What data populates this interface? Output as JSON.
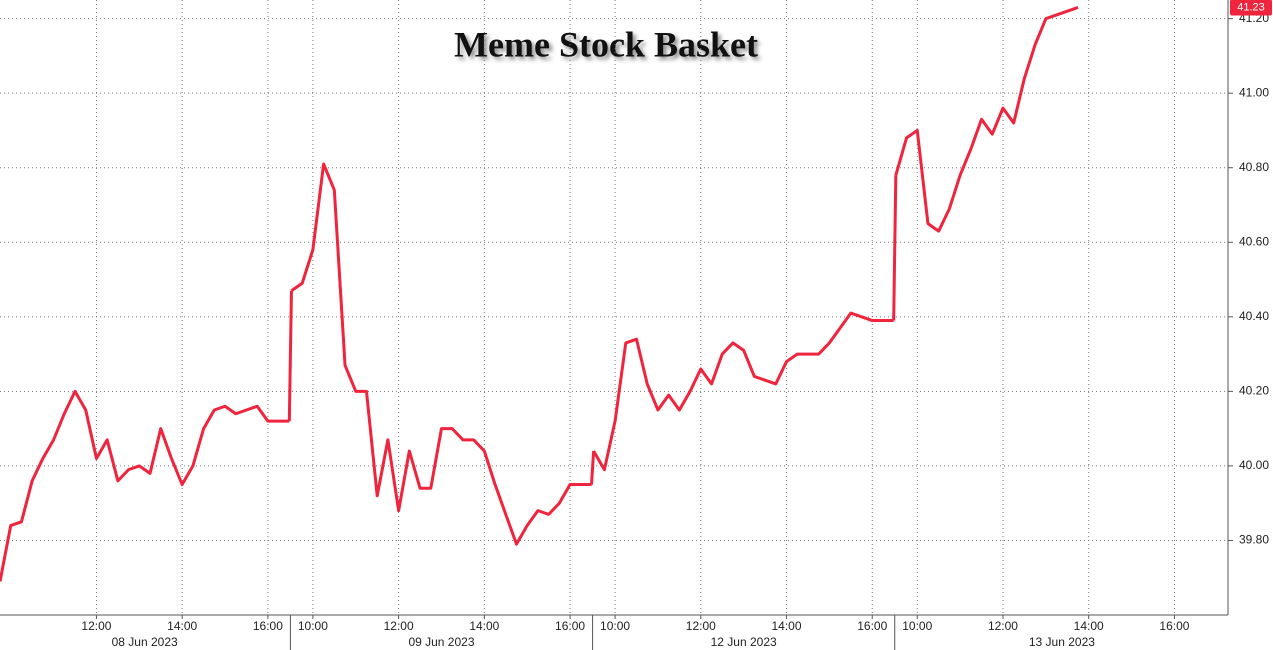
{
  "chart_data": {
    "type": "line",
    "title": "Meme Stock Basket",
    "color": "#f0243c",
    "grid": true,
    "ylim": [
      39.6,
      41.25
    ],
    "yticks": [
      {
        "value": 39.8,
        "label": "39.80"
      },
      {
        "value": 40.0,
        "label": "40.00"
      },
      {
        "value": 40.2,
        "label": "40.20"
      },
      {
        "value": 40.4,
        "label": "40.40"
      },
      {
        "value": 40.6,
        "label": "40.60"
      },
      {
        "value": 40.8,
        "label": "40.80"
      },
      {
        "value": 41.0,
        "label": "41.00"
      },
      {
        "value": 41.2,
        "label": "41.20"
      }
    ],
    "sessions": [
      {
        "label": "08 Jun 2023",
        "categories": [
          null,
          null,
          null,
          null,
          null,
          null,
          null,
          null,
          null,
          "12:00",
          null,
          null,
          null,
          null,
          null,
          null,
          null,
          "14:00",
          null,
          null,
          null,
          null,
          null,
          null,
          null,
          "16:00",
          null,
          null
        ],
        "values": [
          39.69,
          39.84,
          39.85,
          39.96,
          40.02,
          40.07,
          40.14,
          40.2,
          40.15,
          40.02,
          40.07,
          39.96,
          39.99,
          40.0,
          39.98,
          40.1,
          40.02,
          39.95,
          40.0,
          40.1,
          40.15,
          40.16,
          40.14,
          40.15,
          40.16,
          40.12,
          40.12,
          40.12
        ]
      },
      {
        "label": "09 Jun 2023",
        "categories": [
          null,
          null,
          "10:00",
          null,
          null,
          null,
          null,
          null,
          null,
          null,
          "12:00",
          null,
          null,
          null,
          null,
          null,
          null,
          null,
          "14:00",
          null,
          null,
          null,
          null,
          null,
          null,
          null,
          "16:00",
          null,
          null
        ],
        "values": [
          40.47,
          40.49,
          40.58,
          40.81,
          40.74,
          40.27,
          40.2,
          40.2,
          39.92,
          40.07,
          39.88,
          40.04,
          39.94,
          39.94,
          40.1,
          40.1,
          40.07,
          40.07,
          40.04,
          39.95,
          39.87,
          39.79,
          39.84,
          39.88,
          39.87,
          39.9,
          39.95,
          39.95,
          39.95
        ]
      },
      {
        "label": "12 Jun 2023",
        "categories": [
          null,
          null,
          "10:00",
          null,
          null,
          null,
          null,
          null,
          null,
          null,
          "12:00",
          null,
          null,
          null,
          null,
          null,
          null,
          null,
          "14:00",
          null,
          null,
          null,
          null,
          null,
          null,
          null,
          "16:00",
          null,
          null
        ],
        "values": [
          40.04,
          39.99,
          40.12,
          40.33,
          40.34,
          40.22,
          40.15,
          40.19,
          40.15,
          40.2,
          40.26,
          40.22,
          40.3,
          40.33,
          40.31,
          40.24,
          40.23,
          40.22,
          40.28,
          40.3,
          40.3,
          40.3,
          40.33,
          40.37,
          40.41,
          40.4,
          40.39,
          40.39,
          40.39
        ]
      },
      {
        "label": "13 Jun 2023",
        "categories": [
          null,
          null,
          "10:00",
          null,
          null,
          null,
          null,
          null,
          null,
          null,
          "12:00",
          null,
          null,
          null,
          null,
          null,
          null,
          null,
          "14:00",
          null,
          null,
          null,
          null,
          null,
          null,
          null,
          "16:00",
          null,
          null,
          null,
          null,
          null
        ],
        "values": [
          40.78,
          40.88,
          40.9,
          40.65,
          40.63,
          40.69,
          40.78,
          40.85,
          40.93,
          40.89,
          40.96,
          40.92,
          41.04,
          41.13,
          41.2,
          41.21,
          41.22,
          41.23,
          null,
          null,
          null,
          null,
          null,
          null,
          null,
          null,
          null,
          null,
          null,
          null,
          null,
          null
        ]
      }
    ]
  }
}
